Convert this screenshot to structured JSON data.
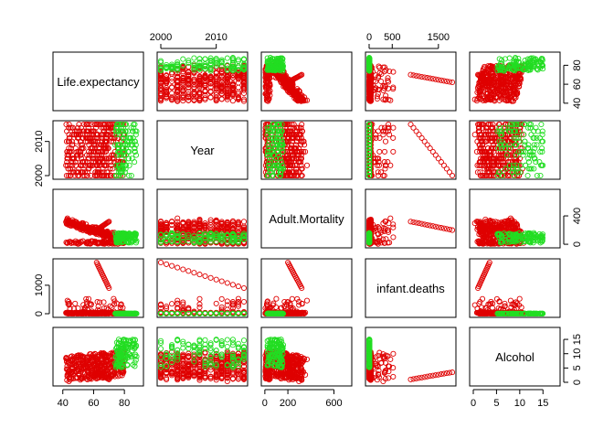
{
  "chart_data": {
    "type": "scatter",
    "title": "",
    "variables": [
      {
        "name": "Life.expectancy",
        "range": [
          36,
          90
        ],
        "ticks": [
          40,
          60,
          80
        ]
      },
      {
        "name": "Year",
        "range": [
          2000,
          2015
        ],
        "ticks": [
          2000,
          2010
        ]
      },
      {
        "name": "Adult.Mortality",
        "range": [
          1,
          723
        ],
        "ticks": [
          0,
          200,
          600
        ],
        "right_ticks": [
          0,
          400
        ]
      },
      {
        "name": "infant.deaths",
        "range": [
          0,
          1800
        ],
        "ticks": [
          0,
          1000
        ],
        "top_ticks": [
          0,
          500,
          1500
        ]
      },
      {
        "name": "Alcohol",
        "range": [
          0,
          17.9
        ],
        "ticks": [
          0,
          5,
          10,
          15
        ]
      }
    ],
    "series": [
      {
        "name": "",
        "color": "#df0000"
      },
      {
        "name": "",
        "color": "#22dd22"
      }
    ],
    "axis_placement": {
      "top": [
        1,
        3
      ],
      "right": [
        0,
        2,
        4
      ],
      "bottom": [
        0,
        2,
        4
      ],
      "left": [
        1,
        3
      ]
    },
    "grid": false,
    "legend": "none"
  }
}
